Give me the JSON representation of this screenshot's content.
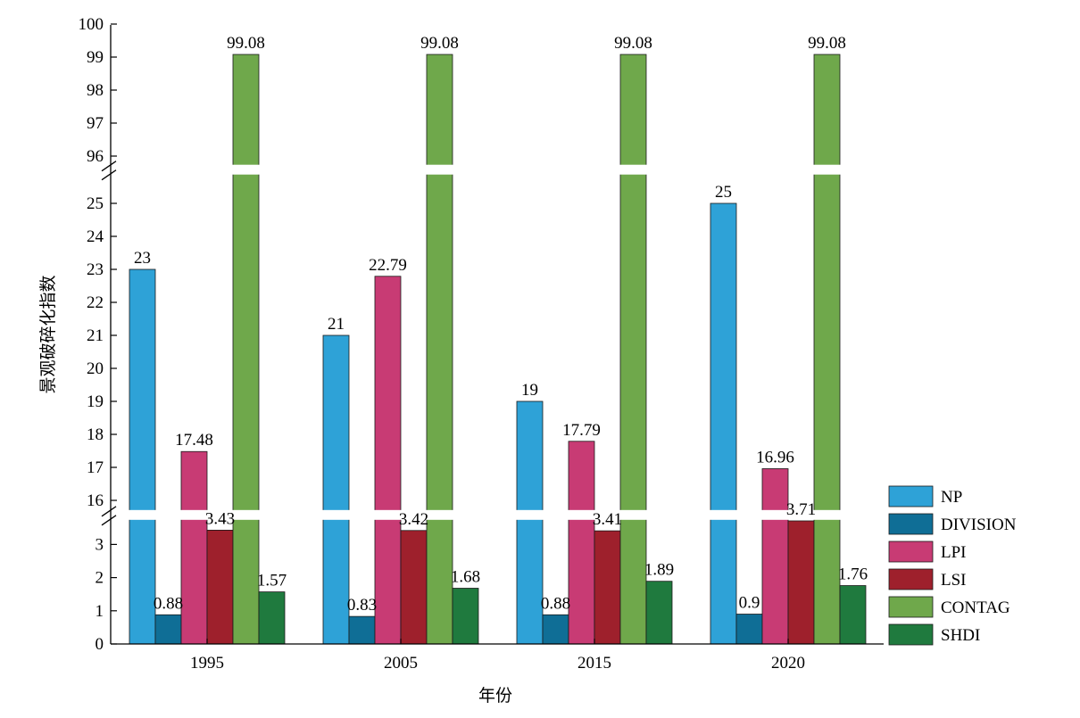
{
  "chart_data": {
    "type": "bar",
    "xlabel": "年份",
    "ylabel": "景观破碎化指数",
    "categories": [
      "1995",
      "2005",
      "2015",
      "2020"
    ],
    "series": [
      {
        "name": "NP",
        "color": "#2ea2d7",
        "values": [
          23,
          21,
          19,
          25
        ]
      },
      {
        "name": "DIVISION",
        "color": "#0f6e96",
        "values": [
          0.88,
          0.83,
          0.88,
          0.9
        ]
      },
      {
        "name": "LPI",
        "color": "#c83b74",
        "values": [
          17.48,
          22.79,
          17.79,
          16.96
        ]
      },
      {
        "name": "LSI",
        "color": "#9e202c",
        "values": [
          3.43,
          3.42,
          3.41,
          3.71
        ]
      },
      {
        "name": "CONTAG",
        "color": "#6fa84b",
        "values": [
          99.08,
          99.08,
          99.08,
          99.08
        ]
      },
      {
        "name": "SHDI",
        "color": "#1f7a3e",
        "values": [
          1.57,
          1.68,
          1.89,
          1.76
        ]
      }
    ],
    "y_axis_segments": [
      {
        "range": [
          0,
          3.8
        ],
        "ticks": [
          0,
          1,
          2,
          3
        ]
      },
      {
        "range": [
          16,
          25.8
        ],
        "ticks": [
          16,
          17,
          18,
          19,
          20,
          21,
          22,
          23,
          24,
          25
        ]
      },
      {
        "range": [
          96,
          100
        ],
        "ticks": [
          96,
          97,
          98,
          99,
          100
        ]
      }
    ],
    "broken_axis": true,
    "grid": false,
    "legend_position": "bottom-right"
  }
}
